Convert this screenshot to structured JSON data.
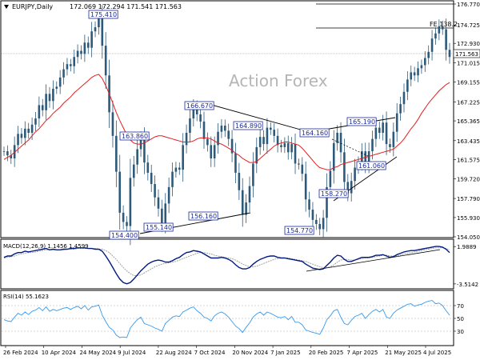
{
  "symbol_header": "EURJPY,Daily",
  "ohlc": "172.069 172.294 171.541 171.563",
  "watermark": "Action Forex",
  "current_price_label": "171.563",
  "fe_label": "FE 138.2",
  "colors": {
    "bullet": "#000000",
    "sma": "#e02020",
    "candle": "#2d5a7a",
    "label_border": "#1d2b9c",
    "label_text": "#1d2b9c",
    "trendline": "#000000",
    "macd_line": "#001a80",
    "macd_signal": "#999999",
    "rsi": "#3399ee"
  },
  "chart_data": [
    {
      "type": "candlestick",
      "title": "EURJPY,Daily",
      "x_tick_labels": [
        "26 Feb 2024",
        "10 Apr 2024",
        "24 May 2024",
        "9 Jul 2024",
        "22 Aug 2024",
        "7 Oct 2024",
        "20 Nov 2024",
        "7 Jan 2025",
        "20 Feb 2025",
        "7 Apr 2025",
        "21 May 2025",
        "4 Jul 2025"
      ],
      "y_tick_labels": [
        "176.770",
        "174.725",
        "172.930",
        "171.015",
        "169.155",
        "167.225",
        "165.365",
        "163.435",
        "161.575",
        "159.720",
        "157.790",
        "155.930",
        "154.050"
      ],
      "ylim": [
        154.05,
        176.77
      ],
      "price_labels": [
        "175.410",
        "166.670",
        "164.890",
        "163.860",
        "164.160",
        "165.190",
        "161.060",
        "158.270",
        "156.160",
        "155.140",
        "154.770",
        "154.400"
      ],
      "series": [
        {
          "values": [
            162.4,
            162.0,
            161.7,
            163.0,
            164.1,
            163.7,
            164.6,
            164.2,
            165.0,
            165.6,
            166.9,
            166.4,
            168.0,
            167.3,
            168.5,
            168.7,
            169.6,
            170.4,
            170.9,
            170.7,
            171.6,
            172.2,
            171.9,
            173.0,
            172.5,
            174.1,
            174.5,
            175.4,
            172.7,
            169.8,
            166.2,
            163.9,
            160.4,
            156.4,
            155.5,
            155.1,
            159.8,
            161.1,
            162.6,
            163.6,
            161.3,
            160.3,
            159.2,
            157.9,
            156.8,
            155.4,
            157.3,
            158.9,
            160.4,
            160.8,
            160.6,
            163.0,
            164.2,
            165.6,
            166.7,
            166.0,
            165.3,
            163.6,
            163.0,
            161.7,
            163.0,
            164.3,
            164.9,
            164.4,
            163.6,
            162.2,
            160.3,
            158.6,
            156.2,
            157.4,
            159.0,
            161.2,
            162.8,
            163.8,
            163.1,
            164.7,
            164.5,
            163.9,
            163.0,
            162.8,
            163.2,
            162.3,
            163.1,
            161.2,
            161.1,
            160.2,
            157.7,
            156.7,
            155.7,
            155.3,
            154.8,
            155.9,
            158.9,
            160.5,
            163.2,
            164.2,
            162.3,
            159.4,
            158.3,
            159.5,
            160.8,
            161.3,
            162.4,
            161.1,
            162.4,
            163.6,
            164.7,
            164.2,
            165.2,
            163.1,
            162.8,
            164.3,
            166.1,
            167.0,
            168.2,
            169.4,
            170.1,
            169.8,
            170.5,
            170.8,
            171.5,
            172.1,
            173.4,
            173.9,
            174.6,
            174.3,
            172.3,
            171.6
          ]
        },
        {
          "name": "SMA",
          "values": [
            161.6,
            161.8,
            162.0,
            162.3,
            162.6,
            162.9,
            163.2,
            163.5,
            163.9,
            164.3,
            164.6,
            165.0,
            165.4,
            165.7,
            166.1,
            166.4,
            166.7,
            167.1,
            167.4,
            167.7,
            168.1,
            168.4,
            168.7,
            169.0,
            169.3,
            169.6,
            169.8,
            169.9,
            169.5,
            168.8,
            168.0,
            167.1,
            166.2,
            165.4,
            164.7,
            164.0,
            163.5,
            163.2,
            163.1,
            163.1,
            163.2,
            163.4,
            163.6,
            163.8,
            163.9,
            163.9,
            163.8,
            163.7,
            163.6,
            163.5,
            163.4,
            163.3,
            163.3,
            163.3,
            163.4,
            163.6,
            163.7,
            163.7,
            163.7,
            163.6,
            163.4,
            163.2,
            163.1,
            162.9,
            162.7,
            162.5,
            162.2,
            162.0,
            161.7,
            161.5,
            161.3,
            161.3,
            161.4,
            161.7,
            162.0,
            162.3,
            162.6,
            162.9,
            163.1,
            163.2,
            163.3,
            163.3,
            163.2,
            163.1,
            163.0,
            162.7,
            162.3,
            161.9,
            161.5,
            161.1,
            160.8,
            160.7,
            160.6,
            160.6,
            160.8,
            160.9,
            161.1,
            161.2,
            161.3,
            161.4,
            161.5,
            161.6,
            161.7,
            161.8,
            161.9,
            162.0,
            162.1,
            162.2,
            162.3,
            162.4,
            162.5,
            162.6,
            162.9,
            163.2,
            163.6,
            164.1,
            164.6,
            165.0,
            165.5,
            166.1,
            166.6,
            167.1,
            167.5,
            167.9,
            168.3,
            168.6,
            168.9,
            169.1
          ]
        }
      ]
    },
    {
      "type": "line",
      "title": "MACD(12,26,9) 1.1456 1.4599",
      "y_tick_labels": [
        "1.9889",
        "-3.5142"
      ],
      "ylim": [
        -4.0,
        2.6
      ],
      "series": [
        {
          "name": "MACD",
          "values": [
            0.4,
            0.6,
            0.6,
            0.9,
            1.1,
            1.1,
            1.3,
            1.2,
            1.3,
            1.4,
            1.5,
            1.6,
            1.7,
            1.5,
            1.6,
            1.5,
            1.5,
            1.6,
            1.6,
            1.7,
            1.7,
            1.8,
            1.8,
            1.8,
            1.7,
            1.7,
            1.6,
            1.6,
            1.3,
            0.6,
            -0.2,
            -1.1,
            -2.0,
            -2.8,
            -3.3,
            -3.5,
            -3.3,
            -2.8,
            -2.2,
            -1.6,
            -1.1,
            -0.6,
            -0.3,
            -0.1,
            0.0,
            -0.1,
            -0.3,
            -0.3,
            -0.1,
            0.2,
            0.4,
            0.8,
            1.1,
            1.2,
            1.4,
            1.3,
            1.2,
            0.9,
            0.6,
            0.3,
            0.3,
            0.3,
            0.4,
            0.3,
            0.1,
            -0.2,
            -0.7,
            -1.1,
            -1.3,
            -1.3,
            -1.1,
            -0.6,
            -0.2,
            0.1,
            0.3,
            0.5,
            0.6,
            0.6,
            0.4,
            0.3,
            0.3,
            0.2,
            0.1,
            0.0,
            -0.1,
            -0.2,
            -0.6,
            -0.9,
            -1.2,
            -1.3,
            -1.4,
            -1.3,
            -0.8,
            -0.3,
            0.3,
            0.7,
            0.6,
            0.1,
            -0.2,
            -0.2,
            0.0,
            0.2,
            0.4,
            0.4,
            0.4,
            0.5,
            0.7,
            0.7,
            0.8,
            0.6,
            0.4,
            0.5,
            0.8,
            1.0,
            1.2,
            1.3,
            1.4,
            1.4,
            1.5,
            1.6,
            1.7,
            1.8,
            1.9,
            2.0,
            2.0,
            1.9,
            1.6,
            1.1
          ]
        },
        {
          "name": "Signal",
          "values": [
            0.3,
            0.4,
            0.5,
            0.6,
            0.8,
            0.9,
            1.0,
            1.1,
            1.1,
            1.2,
            1.3,
            1.4,
            1.5,
            1.5,
            1.5,
            1.5,
            1.5,
            1.5,
            1.6,
            1.6,
            1.6,
            1.7,
            1.7,
            1.7,
            1.7,
            1.7,
            1.7,
            1.6,
            1.6,
            1.4,
            1.1,
            0.6,
            0.1,
            -0.5,
            -1.1,
            -1.6,
            -2.0,
            -2.3,
            -2.3,
            -2.2,
            -1.9,
            -1.6,
            -1.3,
            -1.0,
            -0.8,
            -0.6,
            -0.5,
            -0.4,
            -0.3,
            -0.2,
            0.0,
            0.2,
            0.4,
            0.6,
            0.8,
            1.0,
            1.1,
            1.1,
            1.0,
            0.9,
            0.7,
            0.6,
            0.5,
            0.4,
            0.3,
            0.2,
            0.0,
            -0.3,
            -0.6,
            -0.8,
            -1.0,
            -1.0,
            -0.9,
            -0.7,
            -0.5,
            -0.3,
            -0.1,
            0.1,
            0.2,
            0.3,
            0.3,
            0.3,
            0.2,
            0.1,
            0.0,
            -0.1,
            -0.2,
            -0.4,
            -0.6,
            -0.8,
            -1.0,
            -1.1,
            -1.1,
            -1.0,
            -0.7,
            -0.3,
            0.0,
            0.1,
            0.1,
            0.0,
            0.0,
            0.1,
            0.2,
            0.3,
            0.3,
            0.4,
            0.5,
            0.6,
            0.7,
            0.7,
            0.6,
            0.6,
            0.6,
            0.7,
            0.9,
            1.0,
            1.1,
            1.2,
            1.3,
            1.4,
            1.5,
            1.6,
            1.7,
            1.8,
            1.8,
            1.8,
            1.7,
            1.5
          ]
        }
      ]
    },
    {
      "type": "line",
      "title": "RSI(14) 55.1623",
      "y_tick_labels": [
        "70",
        "50",
        "30"
      ],
      "ylim": [
        10,
        90
      ],
      "series": [
        {
          "values": [
            48,
            46,
            45,
            52,
            58,
            55,
            60,
            56,
            61,
            63,
            67,
            62,
            68,
            61,
            64,
            62,
            64,
            66,
            67,
            64,
            67,
            69,
            65,
            70,
            63,
            68,
            69,
            71,
            55,
            45,
            36,
            32,
            24,
            20,
            21,
            20,
            35,
            42,
            48,
            52,
            42,
            40,
            38,
            35,
            33,
            30,
            42,
            47,
            52,
            54,
            53,
            60,
            63,
            66,
            68,
            62,
            58,
            52,
            50,
            46,
            54,
            58,
            60,
            57,
            52,
            45,
            38,
            34,
            28,
            36,
            43,
            52,
            57,
            60,
            55,
            60,
            58,
            55,
            52,
            51,
            53,
            48,
            53,
            44,
            44,
            40,
            32,
            30,
            28,
            27,
            25,
            35,
            48,
            54,
            62,
            64,
            52,
            42,
            40,
            47,
            53,
            55,
            58,
            50,
            56,
            61,
            64,
            60,
            64,
            52,
            50,
            58,
            63,
            66,
            69,
            72,
            73,
            69,
            71,
            72,
            75,
            77,
            78,
            73,
            74,
            70,
            62,
            55
          ]
        }
      ]
    }
  ]
}
